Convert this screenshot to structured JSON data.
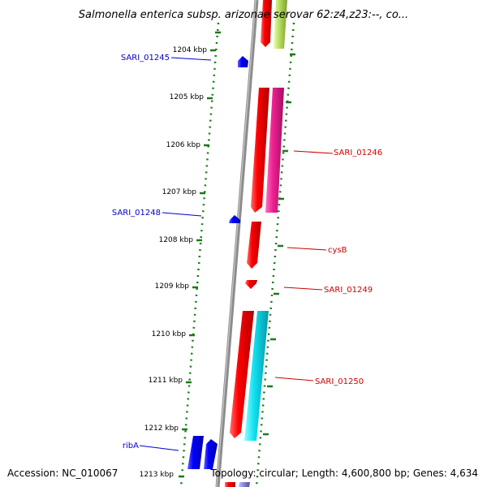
{
  "title": "Salmonella enterica subsp. arizonae serovar 62:z4,z23:--, co...",
  "footer": {
    "accession": "Accession: NC_010067",
    "summary": "Topology: circular; Length: 4,600,800 bp; Genes: 4,634"
  },
  "scale_ticks": [
    "1204 kbp",
    "1205 kbp",
    "1206 kbp",
    "1207 kbp",
    "1208 kbp",
    "1209 kbp",
    "1210 kbp",
    "1211 kbp",
    "1212 kbp",
    "1213 kbp"
  ],
  "gene_labels": [
    {
      "text": "SARI_01245",
      "strand": "reverse",
      "color": "#0000cc"
    },
    {
      "text": "SARI_01246",
      "strand": "forward",
      "color": "#cc0000"
    },
    {
      "text": "SARI_01248",
      "strand": "reverse",
      "color": "#0000cc"
    },
    {
      "text": "cysB",
      "strand": "forward",
      "color": "#cc0000"
    },
    {
      "text": "SARI_01249",
      "strand": "forward",
      "color": "#cc0000"
    },
    {
      "text": "SARI_01250",
      "strand": "forward",
      "color": "#cc0000"
    },
    {
      "text": "ribA",
      "strand": "reverse",
      "color": "#0000cc"
    }
  ],
  "colors": {
    "forward_cds": "#ee0000",
    "reverse_cds": "#0000ee",
    "backbone": "#8c8c8c",
    "ruler_dots": "#1a7a1a",
    "feature_magenta": "#e8208a",
    "feature_cyan": "#10e0f0",
    "feature_lime": "#b8e060",
    "feature_violet": "#8c8ce0"
  }
}
